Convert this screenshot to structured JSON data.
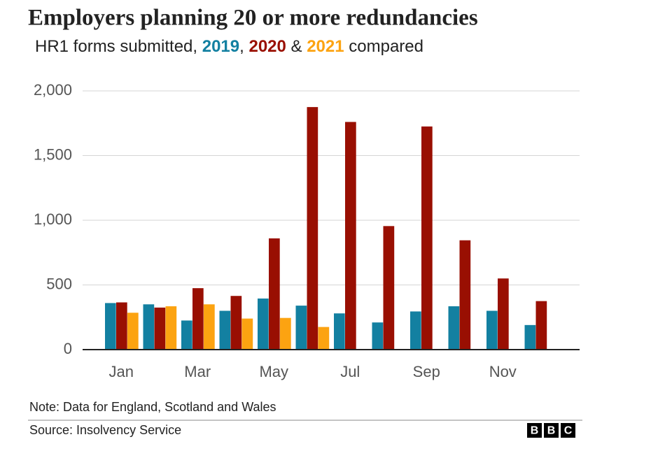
{
  "chart_data": {
    "type": "bar",
    "title": "Employers planning 20 or more redundancies",
    "subtitle_parts": [
      "HR1 forms submitted, ",
      ", ",
      " & ",
      " compared"
    ],
    "categories": [
      "Jan",
      null,
      "Mar",
      null,
      "May",
      null,
      "Jul",
      null,
      "Sep",
      null,
      "Nov",
      null
    ],
    "series": [
      {
        "name": "2019",
        "color": "#1380a1",
        "values": [
          360,
          350,
          225,
          300,
          395,
          340,
          280,
          210,
          295,
          335,
          300,
          190
        ]
      },
      {
        "name": "2020",
        "color": "#990f02",
        "values": [
          365,
          325,
          475,
          415,
          860,
          1875,
          1760,
          955,
          1725,
          845,
          550,
          375
        ]
      },
      {
        "name": "2021",
        "color": "#fca311",
        "values": [
          285,
          335,
          350,
          240,
          245,
          175,
          null,
          null,
          null,
          null,
          null,
          null
        ]
      }
    ],
    "ylim": [
      0,
      2000
    ],
    "yticks": [
      0,
      500,
      {
        "value": 1000,
        "label": "1,000"
      },
      {
        "value": 1500,
        "label": "1,500"
      },
      {
        "value": 2000,
        "label": "2,000"
      }
    ],
    "grid": true,
    "note": "Note: Data for England, Scotland and Wales",
    "source": "Source: Insolvency Service",
    "logo": [
      "B",
      "B",
      "C"
    ]
  }
}
